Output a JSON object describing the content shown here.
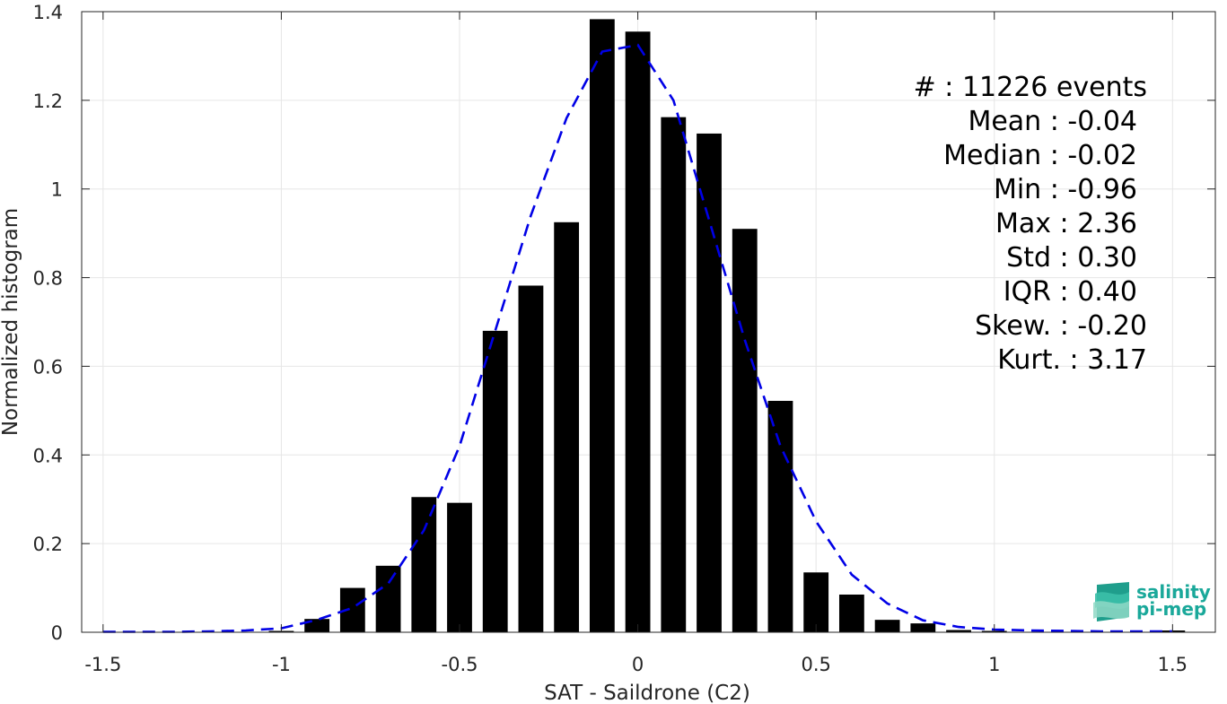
{
  "chart_data": {
    "type": "bar",
    "xlabel": "SAT - Saildrone (C2)",
    "ylabel": "Normalized histogram",
    "xlim": [
      -1.56,
      1.62
    ],
    "ylim": [
      0,
      1.4
    ],
    "x_ticks": [
      -1.5,
      -1,
      -0.5,
      0,
      0.5,
      1,
      1.5
    ],
    "x_tick_labels": [
      "-1.5",
      "-1",
      "-0.5",
      "0",
      "0.5",
      "1",
      "1.5"
    ],
    "y_ticks": [
      0,
      0.2,
      0.4,
      0.6,
      0.8,
      1,
      1.2,
      1.4
    ],
    "y_tick_labels": [
      "0",
      "0.2",
      "0.4",
      "0.6",
      "0.8",
      "1",
      "1.2",
      "1.4"
    ],
    "grid": true,
    "bar_color": "#000000",
    "curve_color": "#0000e6",
    "bar_width": 0.07,
    "bars": {
      "x": [
        -1.0,
        -0.9,
        -0.8,
        -0.7,
        -0.6,
        -0.5,
        -0.4,
        -0.3,
        -0.2,
        -0.1,
        0.0,
        0.1,
        0.2,
        0.3,
        0.4,
        0.5,
        0.6,
        0.7,
        0.8,
        0.9,
        1.0,
        1.1,
        1.2,
        1.3,
        1.4,
        1.5
      ],
      "values": [
        0.003,
        0.03,
        0.1,
        0.15,
        0.305,
        0.292,
        0.68,
        0.782,
        0.925,
        1.383,
        1.355,
        1.162,
        1.125,
        0.91,
        0.522,
        0.135,
        0.085,
        0.028,
        0.02,
        0.005,
        0.003,
        0.001,
        0.001,
        0.001,
        0.001,
        0.004
      ]
    },
    "fit_curve": {
      "x": [
        -1.5,
        -1.4,
        -1.3,
        -1.2,
        -1.1,
        -1.0,
        -0.9,
        -0.8,
        -0.7,
        -0.6,
        -0.5,
        -0.4,
        -0.3,
        -0.2,
        -0.1,
        0.0,
        0.1,
        0.2,
        0.3,
        0.4,
        0.5,
        0.6,
        0.7,
        0.8,
        0.9,
        1.0,
        1.1,
        1.2,
        1.3,
        1.4,
        1.5
      ],
      "values": [
        0.001,
        0.001,
        0.001,
        0.002,
        0.004,
        0.009,
        0.028,
        0.055,
        0.11,
        0.23,
        0.42,
        0.68,
        0.94,
        1.16,
        1.31,
        1.325,
        1.2,
        0.93,
        0.66,
        0.42,
        0.25,
        0.13,
        0.065,
        0.027,
        0.012,
        0.006,
        0.004,
        0.003,
        0.002,
        0.002,
        0.002
      ]
    },
    "annotations": [
      "#  : 11226 events",
      "Mean : -0.04",
      "Median : -0.02",
      "Min : -0.96",
      "Max : 2.36",
      "Std : 0.30",
      "IQR : 0.40",
      "Skew. : -0.20",
      "Kurt. : 3.17"
    ]
  },
  "logo": {
    "line1": "salinity",
    "line2": "pi-mep",
    "color": "#1aa89a"
  }
}
